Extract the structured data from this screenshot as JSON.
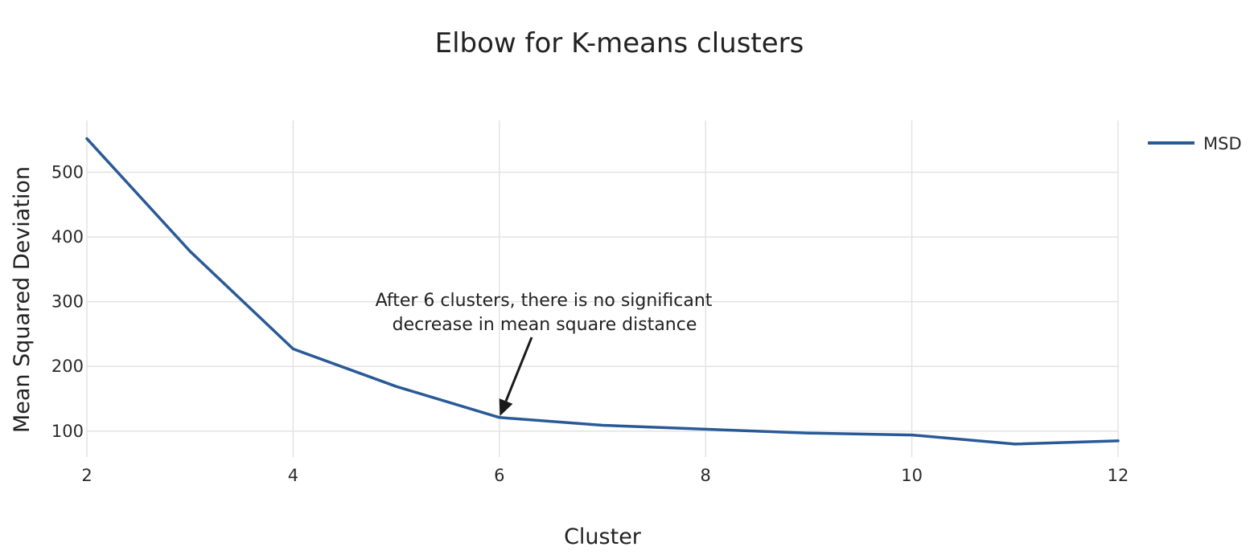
{
  "chart_data": {
    "type": "line",
    "title": "Elbow for K-means clusters",
    "xlabel": "Cluster",
    "ylabel": "Mean Squared Deviation",
    "xlim": [
      2,
      12
    ],
    "ylim": [
      60,
      580
    ],
    "xticks": [
      2,
      4,
      6,
      8,
      10,
      12
    ],
    "yticks": [
      100,
      200,
      300,
      400,
      500
    ],
    "grid": true,
    "legend_position": "top-right",
    "series": [
      {
        "name": "MSD",
        "color": "#2a5a96",
        "x": [
          2,
          3,
          4,
          5,
          6,
          7,
          8,
          9,
          10,
          11,
          12
        ],
        "y": [
          552,
          378,
          227,
          169,
          121,
          109,
          103,
          97,
          94,
          80,
          85
        ]
      }
    ],
    "annotation": {
      "lines": [
        "After 6 clusters, there is no significant",
        "decrease in mean square distance"
      ],
      "x": 6,
      "y": 121
    }
  }
}
